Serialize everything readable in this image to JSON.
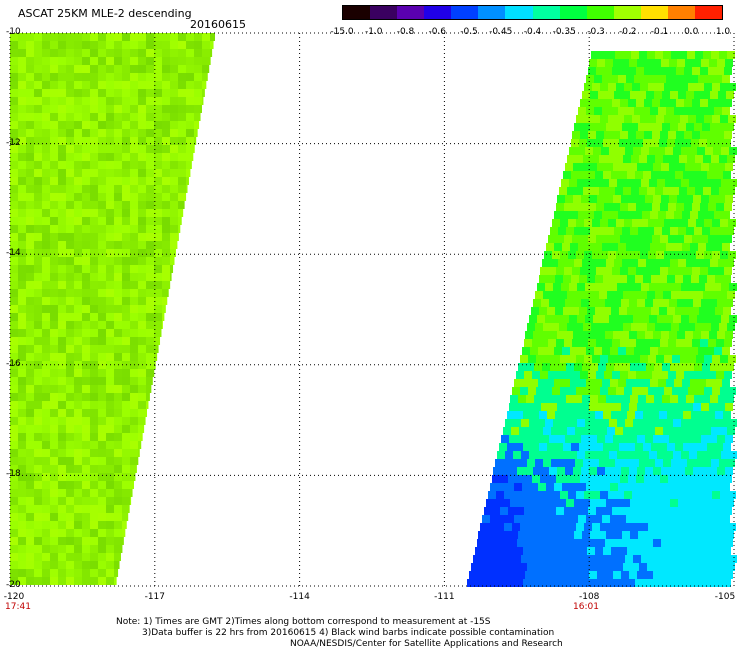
{
  "title": "ASCAT 25KM MLE-2 descending",
  "date": "20160615",
  "colorbar": {
    "labels": [
      "-15.0",
      "-1.0",
      "-0.8",
      "-0.6",
      "-0.5",
      "-0.45",
      "-0.4",
      "-0.35",
      "-0.3",
      "-0.2",
      "-0.1",
      "0.0",
      "1.0"
    ],
    "colors": [
      "#1a0000",
      "#3a0060",
      "#5a00b0",
      "#2000e8",
      "#0040ff",
      "#0090ff",
      "#00e0ff",
      "#00ffa0",
      "#00ff40",
      "#40ff00",
      "#a0ff00",
      "#ffe000",
      "#ff8000",
      "#ff2000"
    ]
  },
  "axes": {
    "lon_labels": [
      "-120",
      "-117",
      "-114",
      "-111",
      "-108",
      "-105"
    ],
    "lat_labels": [
      "-10",
      "-12",
      "-14",
      "-16",
      "-18",
      "-20"
    ],
    "lon_range": [
      -120,
      -105
    ],
    "lat_range": [
      -10,
      -20
    ],
    "grid": true
  },
  "swath_times": [
    {
      "label": "17:41",
      "lon": -120
    },
    {
      "label": "16:01",
      "lon": -108
    }
  ],
  "swaths": [
    {
      "name": "west",
      "lon_range": [
        -120,
        -115.9
      ],
      "dominant_value": -0.3
    },
    {
      "name": "east",
      "lon_range": [
        -110.6,
        -105
      ],
      "dominant_value": -0.35,
      "low_value_region": "south-west corner",
      "low_value": -0.5
    }
  ],
  "notes": [
    "Note: 1) Times are GMT 2)Times along bottom correspond to measurement at -15S",
    "3)Data buffer is 22 hrs from 20160615 4) Black wind barbs indicate possible contamination",
    "NOAA/NESDIS/Center for Satellite Applications and Research"
  ]
}
